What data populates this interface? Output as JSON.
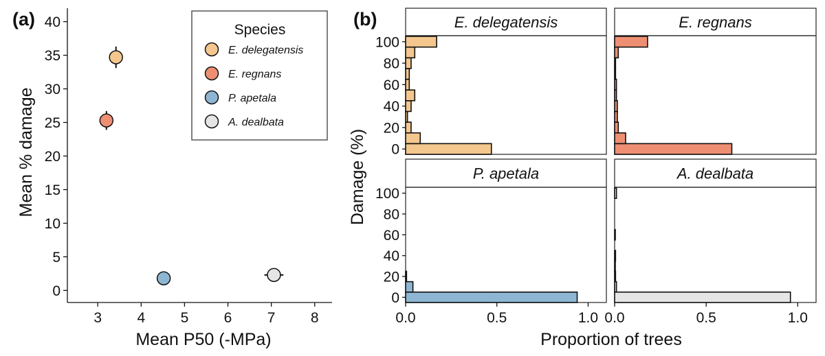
{
  "chart_data": [
    {
      "type": "scatter",
      "panel_label": "(a)",
      "xlabel": "Mean P50 (-MPa)",
      "ylabel": "Mean % damage",
      "xlim": [
        2.3,
        8.4
      ],
      "ylim": [
        -1.8,
        42
      ],
      "xticks": [
        3,
        4,
        5,
        6,
        7,
        8
      ],
      "yticks": [
        0,
        5,
        10,
        15,
        20,
        25,
        30,
        35,
        40
      ],
      "grid": false,
      "legend": {
        "title": "Species",
        "placement": "top-right"
      },
      "series": [
        {
          "name": "E. delegatensis",
          "color": "#F3C78E",
          "x": 3.42,
          "y": 34.7,
          "xerr": 0.12,
          "yerr": 1.6
        },
        {
          "name": "E. regnans",
          "color": "#EE8F73",
          "x": 3.2,
          "y": 25.3,
          "xerr": 0.12,
          "yerr": 1.4
        },
        {
          "name": "P. apetala",
          "color": "#8EB6D2",
          "x": 4.52,
          "y": 1.8,
          "xerr": 0.0,
          "yerr": 0.0
        },
        {
          "name": "A. dealbata",
          "color": "#E5E5E5",
          "x": 7.06,
          "y": 2.3,
          "xerr": 0.22,
          "yerr": 0.5
        }
      ]
    },
    {
      "type": "bar",
      "orientation": "horizontal",
      "panel_label": "(b)",
      "xlabel": "Proportion of trees",
      "ylabel": "Damage (%)",
      "xlim": [
        0,
        1.1
      ],
      "ylim": [
        -5,
        105
      ],
      "xticks": [
        0,
        0.5,
        1
      ],
      "xtick_labels": [
        "0.0",
        "0.5",
        "1.0"
      ],
      "yticks": [
        0,
        20,
        40,
        60,
        80,
        100
      ],
      "damage_bins": [
        0,
        10,
        20,
        30,
        40,
        50,
        60,
        70,
        80,
        90,
        100
      ],
      "panels": [
        {
          "name": "E. delegatensis",
          "color": "#F3C78E",
          "values": [
            0.47,
            0.08,
            0.03,
            0.01,
            0.03,
            0.05,
            0.02,
            0.02,
            0.03,
            0.05,
            0.17
          ]
        },
        {
          "name": "E. regnans",
          "color": "#EE8F73",
          "values": [
            0.64,
            0.06,
            0.02,
            0.015,
            0.015,
            0.01,
            0.01,
            0.005,
            0.005,
            0.02,
            0.18
          ]
        },
        {
          "name": "P. apetala",
          "color": "#8EB6D2",
          "values": [
            0.94,
            0.04,
            0.005,
            0.0,
            0.0,
            0.0,
            0.0,
            0.0,
            0.0,
            0.0,
            0.0
          ]
        },
        {
          "name": "A. dealbata",
          "color": "#E5E5E5",
          "values": [
            0.96,
            0.01,
            0.005,
            0.003,
            0.005,
            0.0,
            0.003,
            0.0,
            0.0,
            0.0,
            0.01
          ]
        }
      ]
    }
  ]
}
